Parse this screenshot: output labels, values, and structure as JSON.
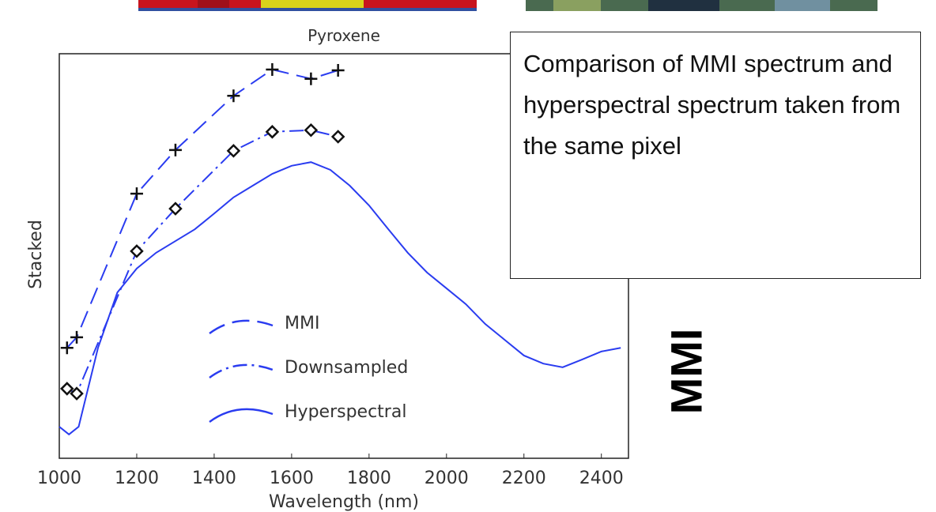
{
  "chart_data": {
    "type": "line",
    "title": "Pyroxene",
    "x_label": "Wavelength (nm)",
    "y_label": "Stacked",
    "xlim": [
      1000,
      2470
    ],
    "ylim": [
      0,
      10
    ],
    "xticks": [
      1000,
      1200,
      1400,
      1600,
      1800,
      2000,
      2200,
      2400
    ],
    "series": [
      {
        "name": "MMI",
        "color": "#2a3cf0",
        "dash": "dashed",
        "marker": "plus",
        "x": [
          1020,
          1045,
          1200,
          1300,
          1450,
          1550,
          1650,
          1720
        ],
        "values": [
          2.73,
          2.99,
          6.54,
          7.62,
          8.96,
          9.61,
          9.38,
          9.59
        ]
      },
      {
        "name": "Downsampled",
        "color": "#2a3cf0",
        "dash": "dashdot",
        "marker": "diamond",
        "x": [
          1020,
          1045,
          1200,
          1300,
          1450,
          1550,
          1650,
          1720
        ],
        "values": [
          1.72,
          1.6,
          5.12,
          6.17,
          7.6,
          8.07,
          8.11,
          7.95
        ]
      },
      {
        "name": "Hyperspectral",
        "color": "#2a3cf0",
        "dash": "solid",
        "marker": "none",
        "x": [
          1000,
          1025,
          1050,
          1100,
          1150,
          1200,
          1250,
          1300,
          1350,
          1400,
          1450,
          1500,
          1550,
          1600,
          1650,
          1700,
          1750,
          1800,
          1850,
          1900,
          1950,
          2000,
          2050,
          2100,
          2150,
          2200,
          2250,
          2300,
          2350,
          2400,
          2450
        ],
        "values": [
          0.78,
          0.59,
          0.78,
          2.73,
          4.1,
          4.69,
          5.08,
          5.37,
          5.66,
          6.05,
          6.45,
          6.74,
          7.03,
          7.23,
          7.32,
          7.13,
          6.74,
          6.25,
          5.66,
          5.08,
          4.59,
          4.2,
          3.81,
          3.32,
          2.93,
          2.54,
          2.34,
          2.25,
          2.44,
          2.64,
          2.73
        ]
      }
    ]
  },
  "annotation": "Comparison of MMI spectrum and hyperspectral spectrum taken from the same pixel",
  "side_label": "MMI"
}
